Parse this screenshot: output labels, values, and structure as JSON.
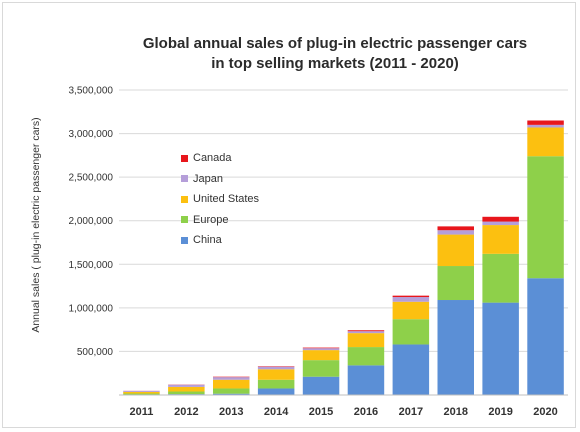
{
  "chart_data": {
    "type": "bar",
    "stacked": true,
    "title": [
      "Global annual sales of plug-in electric passenger cars",
      "in top selling markets (2011 - 2020)"
    ],
    "xlabel": "",
    "ylabel": "Annual sales ( plug-in electric passenger cars)",
    "categories": [
      "2011",
      "2012",
      "2013",
      "2014",
      "2015",
      "2016",
      "2017",
      "2018",
      "2019",
      "2020"
    ],
    "ylim": [
      0,
      3500000
    ],
    "yticks": [
      500000,
      1000000,
      1500000,
      2000000,
      2500000,
      3000000,
      3500000
    ],
    "ytick_labels": [
      "500,000",
      "1,000,000",
      "1,500,000",
      "2,000,000",
      "2,500,000",
      "3,000,000",
      "3,500,000"
    ],
    "grid": true,
    "legend_position": "upper-left",
    "series": [
      {
        "name": "China",
        "color": "#5b8fd6",
        "values": [
          5000,
          10000,
          15000,
          75000,
          210000,
          340000,
          580000,
          1090000,
          1060000,
          1340000
        ]
      },
      {
        "name": "Europe",
        "color": "#8ed04a",
        "values": [
          12000,
          30000,
          60000,
          100000,
          190000,
          210000,
          290000,
          390000,
          560000,
          1400000
        ]
      },
      {
        "name": "United States",
        "color": "#fcc010",
        "values": [
          18000,
          53000,
          100000,
          120000,
          115000,
          160000,
          200000,
          361000,
          330000,
          330000
        ]
      },
      {
        "name": "Japan",
        "color": "#b59ed9",
        "values": [
          12000,
          25000,
          30000,
          30000,
          22000,
          22000,
          54000,
          50000,
          40000,
          30000
        ]
      },
      {
        "name": "Canada",
        "color": "#e8161c",
        "values": [
          1000,
          2000,
          5000,
          5000,
          7000,
          11000,
          16000,
          44000,
          55000,
          50000
        ]
      }
    ]
  }
}
